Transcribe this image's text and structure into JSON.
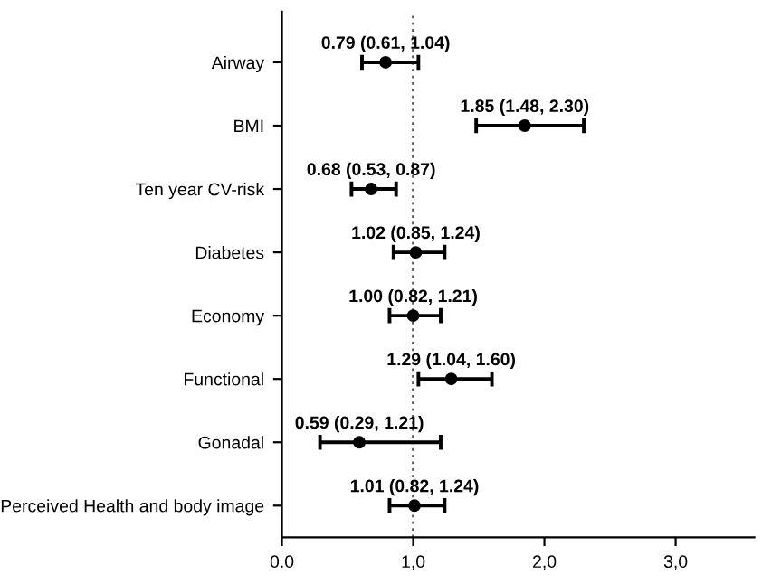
{
  "chart_data": {
    "type": "scatter",
    "orientation": "horizontal",
    "categories": [
      "Airway",
      "BMI",
      "Ten year CV-risk",
      "Diabetes",
      "Economy",
      "Functional",
      "Gonadal",
      "Perceived Health and body image"
    ],
    "values": [
      0.79,
      1.85,
      0.68,
      1.02,
      1.0,
      1.29,
      0.59,
      1.01
    ],
    "errors": [
      [
        0.61,
        1.04
      ],
      [
        1.48,
        2.3
      ],
      [
        0.53,
        0.87
      ],
      [
        0.85,
        1.24
      ],
      [
        0.82,
        1.21
      ],
      [
        1.04,
        1.6
      ],
      [
        0.29,
        1.21
      ],
      [
        0.82,
        1.24
      ]
    ],
    "value_labels": [
      "0.79 (0.61, 1.04)",
      "1.85 (1.48, 2.30)",
      "0.68 (0.53, 0.87)",
      "1.02 (0.85, 1.24)",
      "1.00 (0.82, 1.21)",
      "1.29 (1.04, 1.60)",
      "0.59 (0.29, 1.21)",
      "1.01 (0.82, 1.24)"
    ],
    "color": "#000000",
    "marker": "circle",
    "xlim": [
      0,
      3.6
    ],
    "xticks": [
      {
        "value": 0,
        "label": "0.0"
      },
      {
        "value": 1,
        "label": "1,0"
      },
      {
        "value": 2,
        "label": "2,0"
      },
      {
        "value": 3,
        "label": "3,0"
      }
    ],
    "ref_lines": [
      {
        "axis": "x",
        "value": 1,
        "line_style": "dotted",
        "color": "#555555"
      }
    ],
    "grid": false,
    "legend": false
  }
}
